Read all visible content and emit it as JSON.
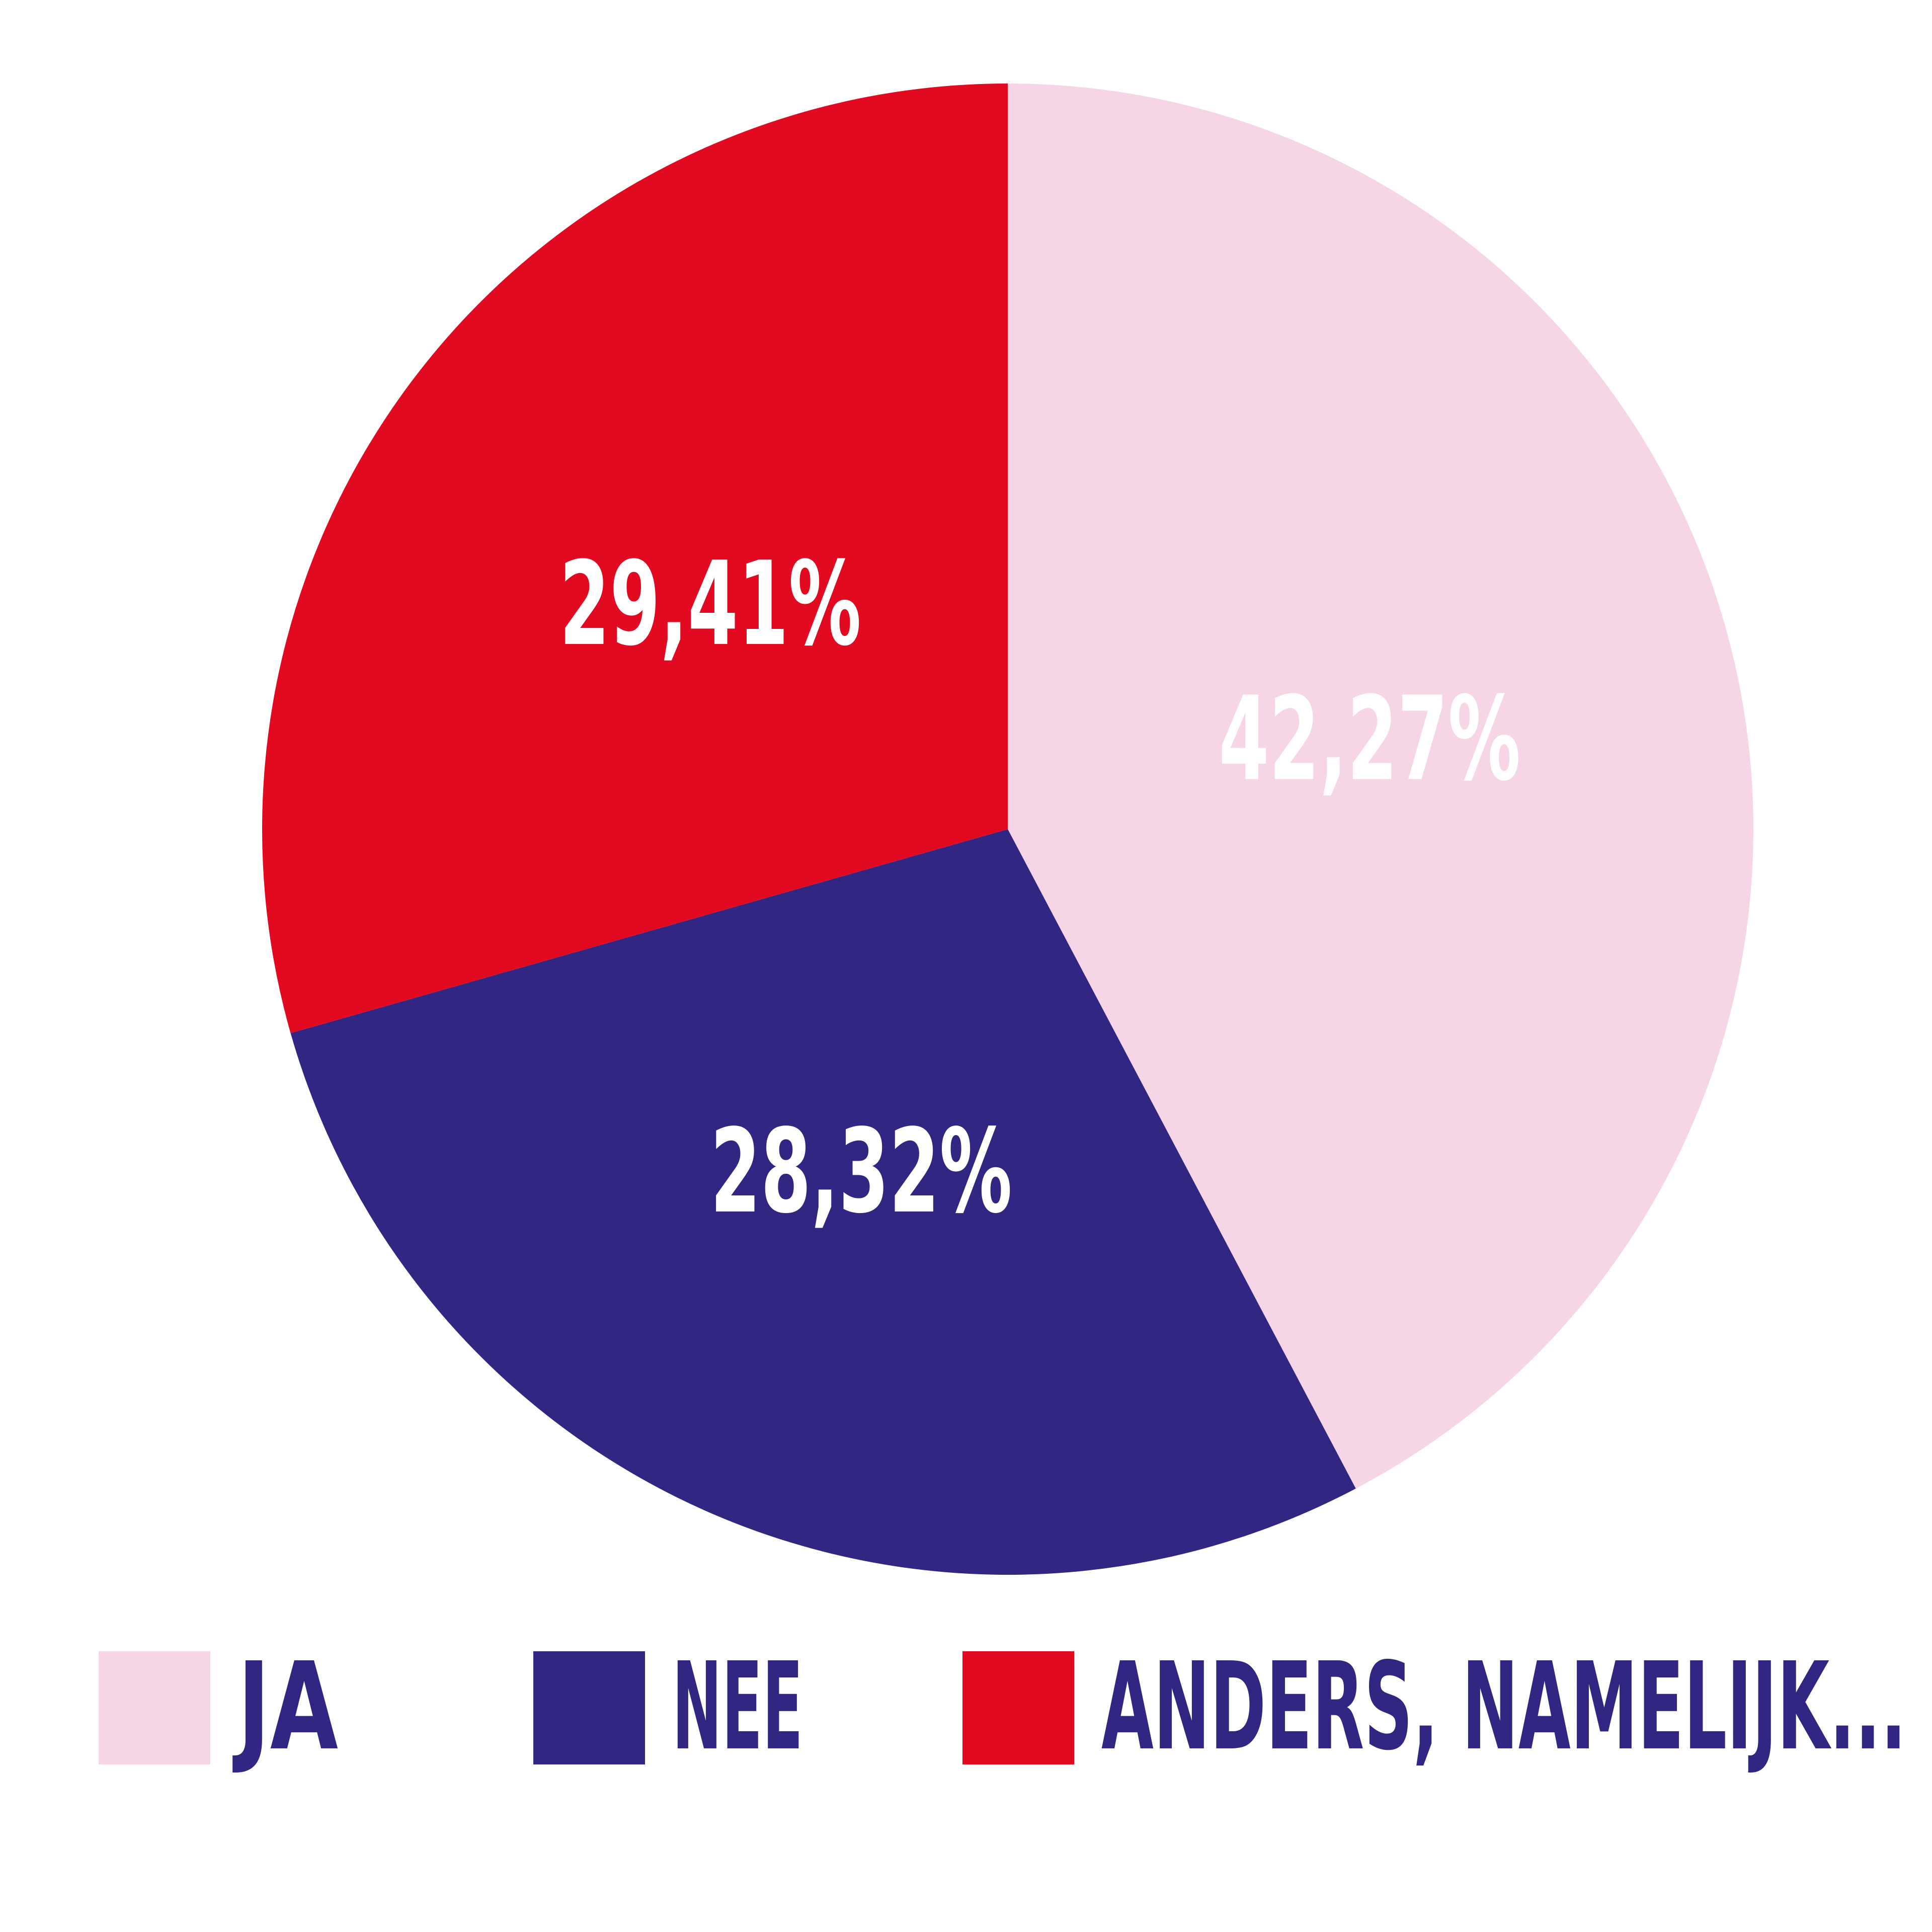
{
  "chart_data": {
    "type": "pie",
    "categories": [
      "JA",
      "NEE",
      "ANDERS, NAMELIJK..."
    ],
    "values": [
      42.27,
      28.32,
      29.41
    ],
    "value_labels": [
      "42,27%",
      "28,32%",
      "29,41%"
    ],
    "colors": [
      "#f6d5e7",
      "#312783",
      "#e10a21"
    ],
    "label_color": "#ffffff",
    "legend_color": "#312783"
  }
}
